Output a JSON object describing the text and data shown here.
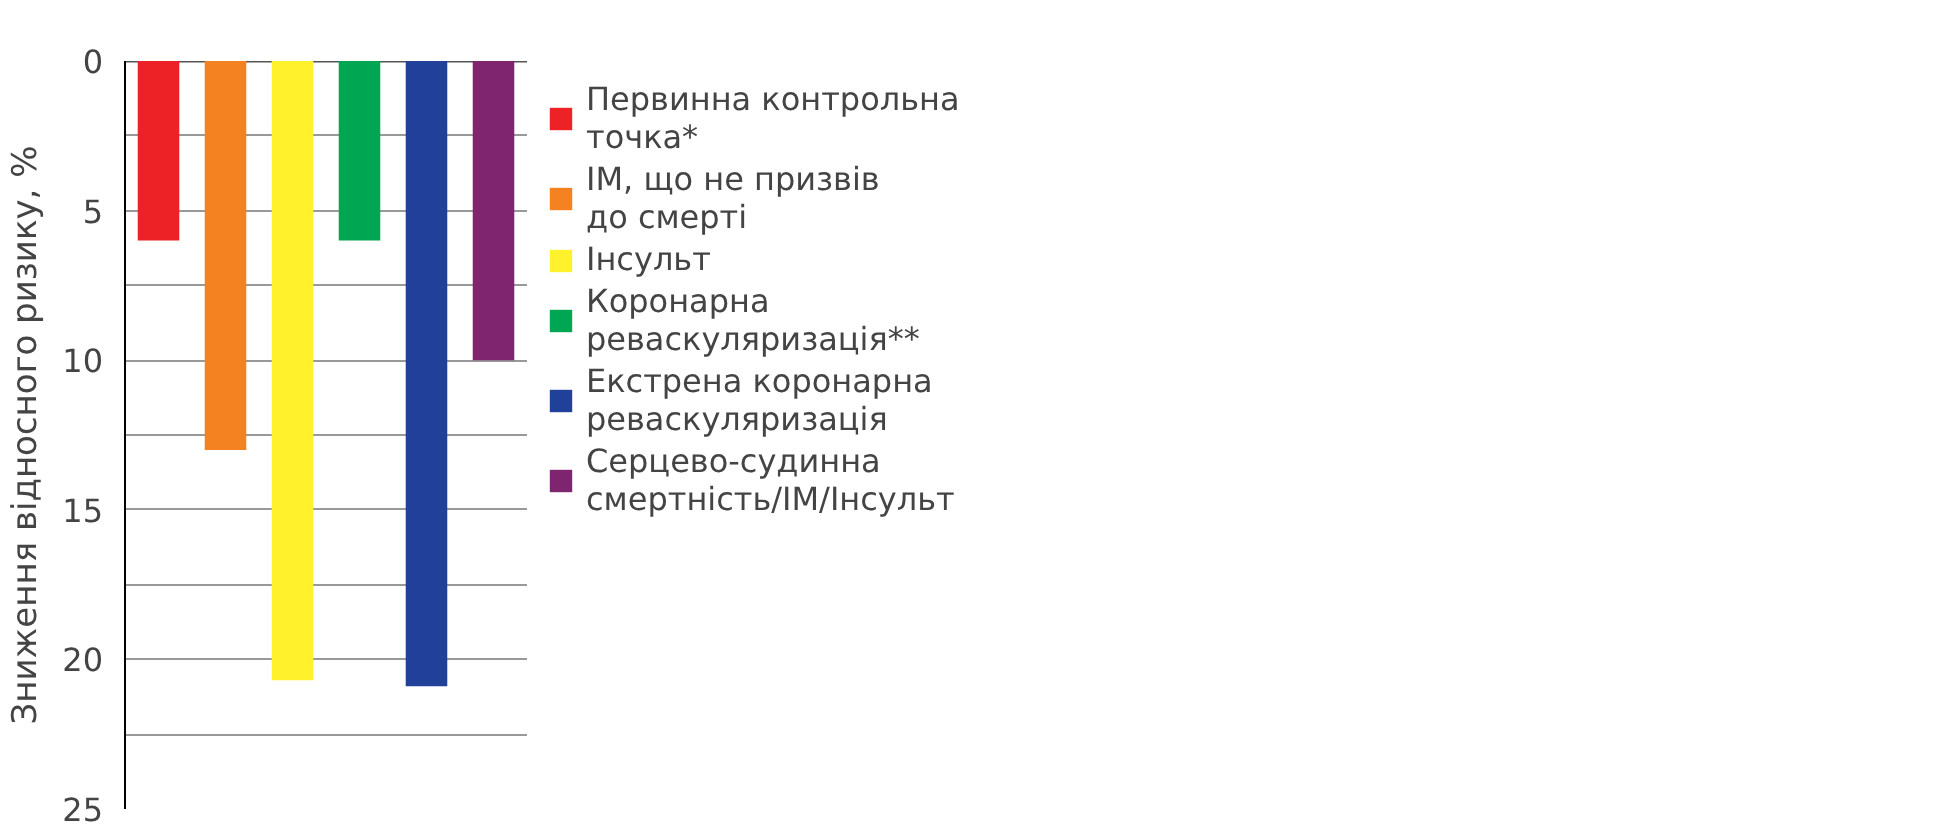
{
  "chart_data": {
    "type": "bar",
    "ylabel": "Зниження відносного ризику, %",
    "categories": [
      null,
      null,
      null,
      null,
      null,
      null
    ],
    "series": [
      {
        "name": "Первинна контрольна\nточка*",
        "color": "#ec2227",
        "values": [
          6,
          null,
          null,
          null,
          null,
          null
        ]
      },
      {
        "name": "ІМ, що не призвів\nдо смерті",
        "color": "#f58220",
        "values": [
          null,
          13,
          null,
          null,
          null,
          null
        ]
      },
      {
        "name": "Інсульт",
        "color": "#fff22d",
        "values": [
          null,
          null,
          20.7,
          null,
          null,
          null
        ]
      },
      {
        "name": "Коронарна\nреваскуляризація**",
        "color": "#00a651",
        "values": [
          null,
          null,
          null,
          6,
          null,
          null
        ]
      },
      {
        "name": "Екстрена коронарна\nреваскуляризація",
        "color": "#21409a",
        "values": [
          null,
          null,
          null,
          null,
          20.9,
          null
        ]
      },
      {
        "name": "Серцево-судинна\nсмертність/ІМ/Інсульт",
        "color": "#7f2570",
        "values": [
          null,
          null,
          null,
          null,
          null,
          10
        ]
      }
    ],
    "ylim": [
      25,
      0
    ],
    "yticks": [
      0,
      {
        "value": 2.5,
        "label": null
      },
      5,
      {
        "value": 7.5,
        "label": null
      },
      10,
      {
        "value": 12.5,
        "label": null
      },
      15,
      {
        "value": 17.5,
        "label": null
      },
      20,
      {
        "value": 22.5,
        "label": null
      },
      25
    ],
    "grid": "y",
    "legend": "right"
  }
}
